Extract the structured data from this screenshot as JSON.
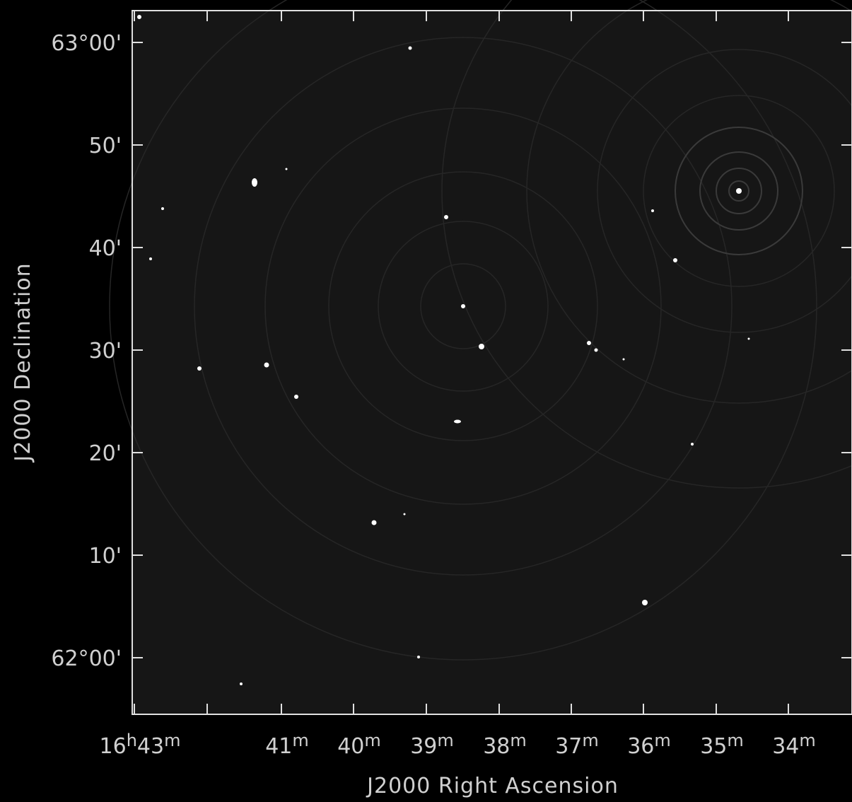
{
  "x_axis": {
    "label": "J2000 Right Ascension",
    "ticks": [
      [
        "16",
        "h",
        "43",
        "m"
      ],
      [
        "41",
        "m"
      ],
      [
        "40",
        "m"
      ],
      [
        "39",
        "m"
      ],
      [
        "38",
        "m"
      ],
      [
        "37",
        "m"
      ],
      [
        "36",
        "m"
      ],
      [
        "35",
        "m"
      ],
      [
        "34",
        "m"
      ]
    ]
  },
  "y_axis": {
    "label": "J2000 Declination",
    "ticks": [
      "63°00'",
      "50'",
      "40'",
      "30'",
      "20'",
      "10'",
      "62°00'"
    ]
  }
}
